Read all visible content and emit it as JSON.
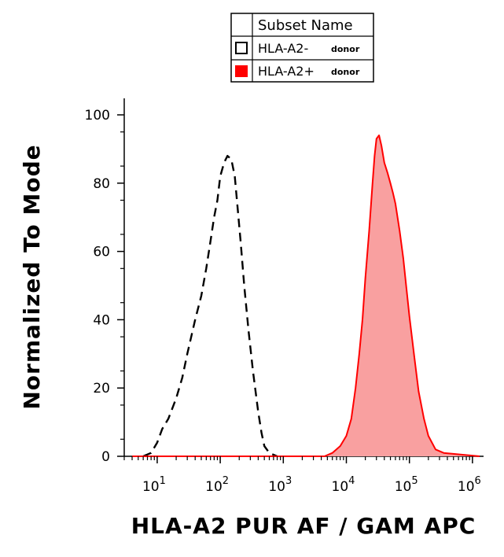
{
  "chart_data": {
    "type": "area",
    "xlabel": "HLA-A2 PUR AF / GAM APC",
    "ylabel": "Normalized To Mode",
    "x_scale": "log",
    "xlim": [
      3,
      1500000
    ],
    "ylim": [
      0,
      100
    ],
    "x_ticks": [
      {
        "value": 10,
        "base": "10",
        "exp": "1"
      },
      {
        "value": 100,
        "base": "10",
        "exp": "2"
      },
      {
        "value": 1000,
        "base": "10",
        "exp": "3"
      },
      {
        "value": 10000,
        "base": "10",
        "exp": "4"
      },
      {
        "value": 100000,
        "base": "10",
        "exp": "5"
      },
      {
        "value": 1000000,
        "base": "10",
        "exp": "6"
      }
    ],
    "y_ticks": [
      "0",
      "20",
      "40",
      "60",
      "80",
      "100"
    ],
    "grid": false,
    "legend": {
      "position": "top-center",
      "header": "Subset Name",
      "entries": [
        {
          "label": "HLA-A2-",
          "note": "donor",
          "style": "dashed-outline"
        },
        {
          "label": "HLA-A2+",
          "note": "donor",
          "style": "filled-red"
        }
      ]
    },
    "series": [
      {
        "name": "HLA-A2-",
        "color": "#000000",
        "fill": "none",
        "line": "dashed",
        "points": [
          [
            6,
            0
          ],
          [
            8,
            1
          ],
          [
            10,
            4
          ],
          [
            12,
            8
          ],
          [
            15,
            11
          ],
          [
            20,
            17
          ],
          [
            25,
            23
          ],
          [
            30,
            30
          ],
          [
            40,
            40
          ],
          [
            50,
            47
          ],
          [
            60,
            55
          ],
          [
            70,
            63
          ],
          [
            80,
            70
          ],
          [
            90,
            75
          ],
          [
            100,
            82
          ],
          [
            115,
            86
          ],
          [
            130,
            88
          ],
          [
            150,
            87
          ],
          [
            170,
            82
          ],
          [
            190,
            72
          ],
          [
            210,
            63
          ],
          [
            240,
            50
          ],
          [
            280,
            37
          ],
          [
            330,
            25
          ],
          [
            400,
            13
          ],
          [
            450,
            7
          ],
          [
            500,
            3
          ],
          [
            600,
            1
          ],
          [
            800,
            0
          ]
        ]
      },
      {
        "name": "HLA-A2+",
        "color": "#ff0000",
        "fill": "#f9a0a0",
        "line": "solid",
        "points": [
          [
            4,
            0
          ],
          [
            4500,
            0
          ],
          [
            6000,
            1
          ],
          [
            8000,
            3
          ],
          [
            10000,
            6
          ],
          [
            12000,
            11
          ],
          [
            14000,
            20
          ],
          [
            16000,
            30
          ],
          [
            18000,
            40
          ],
          [
            20000,
            52
          ],
          [
            23000,
            66
          ],
          [
            26000,
            80
          ],
          [
            28000,
            88
          ],
          [
            30000,
            93
          ],
          [
            33000,
            94
          ],
          [
            36000,
            91
          ],
          [
            40000,
            86
          ],
          [
            45000,
            83
          ],
          [
            50000,
            80
          ],
          [
            55000,
            77
          ],
          [
            60000,
            74
          ],
          [
            70000,
            66
          ],
          [
            80000,
            58
          ],
          [
            90000,
            49
          ],
          [
            100000,
            41
          ],
          [
            120000,
            29
          ],
          [
            140000,
            19
          ],
          [
            170000,
            11
          ],
          [
            200000,
            6
          ],
          [
            260000,
            2
          ],
          [
            350000,
            1
          ],
          [
            1300000,
            0
          ]
        ]
      }
    ]
  }
}
